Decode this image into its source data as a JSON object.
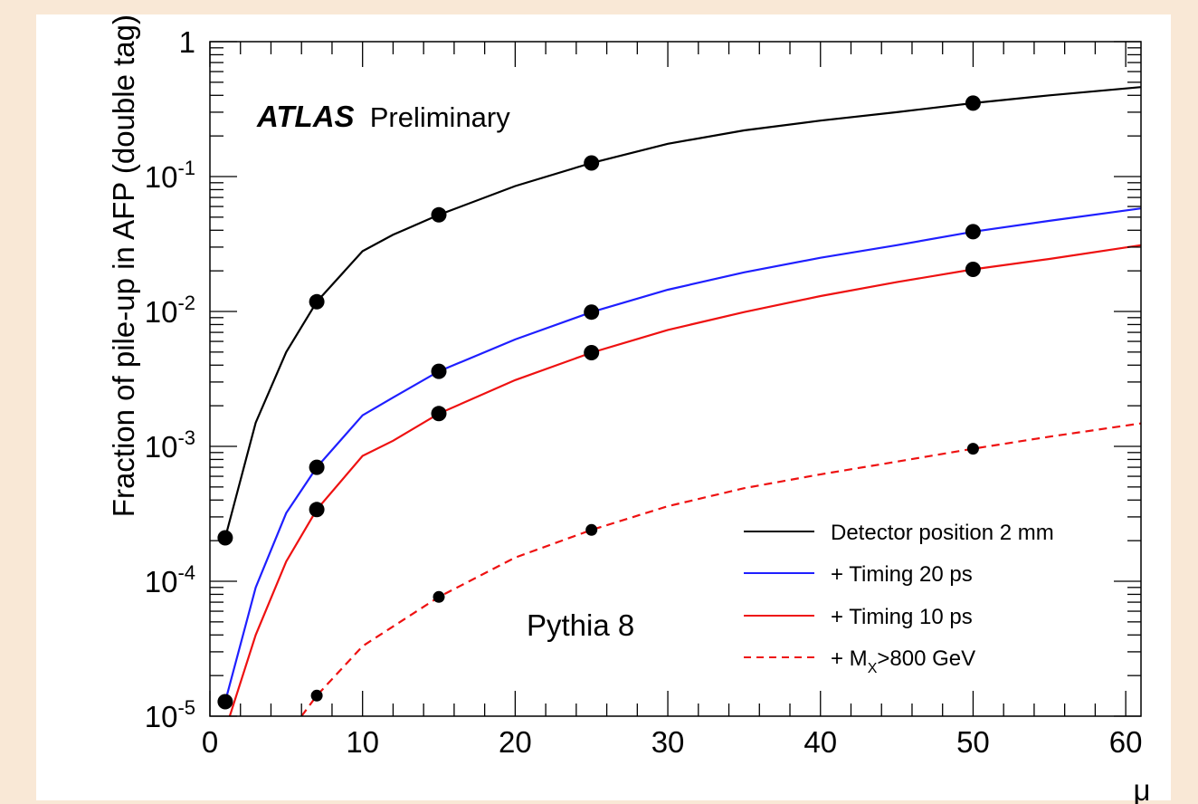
{
  "chart_data": {
    "type": "line",
    "ylabel": "Fraction of pile-up in AFP (double tag)",
    "xlabel": "μ",
    "xlim": [
      0,
      61
    ],
    "ylim": [
      1e-05,
      1
    ],
    "yscale": "log",
    "x_ticks": [
      0,
      10,
      20,
      30,
      40,
      50,
      60
    ],
    "y_ticks": [
      {
        "value": 1,
        "base": "1",
        "exp": ""
      },
      {
        "value": 0.1,
        "base": "10",
        "exp": "-1"
      },
      {
        "value": 0.01,
        "base": "10",
        "exp": "-2"
      },
      {
        "value": 0.001,
        "base": "10",
        "exp": "-3"
      },
      {
        "value": 0.0001,
        "base": "10",
        "exp": "-4"
      },
      {
        "value": 1e-05,
        "base": "10",
        "exp": "-5"
      }
    ],
    "annotations": {
      "experiment": "ATLAS",
      "status": "Preliminary",
      "generator": "Pythia 8"
    },
    "legend_position": "bottom-right",
    "series": [
      {
        "name": "Detector position 2 mm",
        "color": "#000000",
        "dashed": false,
        "points": [
          [
            1,
            0.00021
          ],
          [
            7,
            0.0118
          ],
          [
            15,
            0.052
          ],
          [
            25,
            0.126
          ],
          [
            50,
            0.35
          ]
        ],
        "curve": [
          [
            1,
            0.00021
          ],
          [
            3,
            0.0015
          ],
          [
            5,
            0.005
          ],
          [
            7,
            0.0118
          ],
          [
            10,
            0.028
          ],
          [
            12,
            0.037
          ],
          [
            15,
            0.052
          ],
          [
            20,
            0.085
          ],
          [
            25,
            0.126
          ],
          [
            30,
            0.175
          ],
          [
            35,
            0.22
          ],
          [
            40,
            0.26
          ],
          [
            45,
            0.3
          ],
          [
            50,
            0.35
          ],
          [
            55,
            0.4
          ],
          [
            61,
            0.46
          ]
        ]
      },
      {
        "name": "+ Timing 20 ps",
        "color": "#1f1fff",
        "dashed": false,
        "points": [
          [
            1,
            1.28e-05
          ],
          [
            7,
            0.0007
          ],
          [
            15,
            0.0036
          ],
          [
            25,
            0.0099
          ],
          [
            50,
            0.039
          ]
        ],
        "curve": [
          [
            1,
            1.28e-05
          ],
          [
            3,
            9e-05
          ],
          [
            5,
            0.00032
          ],
          [
            7,
            0.0007
          ],
          [
            10,
            0.0017
          ],
          [
            12,
            0.0023
          ],
          [
            15,
            0.0036
          ],
          [
            20,
            0.0062
          ],
          [
            25,
            0.0099
          ],
          [
            30,
            0.0145
          ],
          [
            35,
            0.0195
          ],
          [
            40,
            0.025
          ],
          [
            45,
            0.031
          ],
          [
            50,
            0.039
          ],
          [
            55,
            0.047
          ],
          [
            61,
            0.058
          ]
        ]
      },
      {
        "name": "+ Timing 10 ps",
        "color": "#ee1111",
        "dashed": false,
        "points": [
          [
            7,
            0.00034
          ],
          [
            15,
            0.00175
          ],
          [
            25,
            0.00495
          ],
          [
            50,
            0.0205
          ]
        ],
        "curve": [
          [
            1.3,
            1e-05
          ],
          [
            3,
            4e-05
          ],
          [
            5,
            0.00014
          ],
          [
            7,
            0.00034
          ],
          [
            10,
            0.00085
          ],
          [
            12,
            0.0011
          ],
          [
            15,
            0.00175
          ],
          [
            20,
            0.0031
          ],
          [
            25,
            0.00495
          ],
          [
            30,
            0.0073
          ],
          [
            35,
            0.0099
          ],
          [
            40,
            0.013
          ],
          [
            45,
            0.0165
          ],
          [
            50,
            0.0205
          ],
          [
            55,
            0.0245
          ],
          [
            61,
            0.031
          ]
        ]
      },
      {
        "name": "+ M_X>800 GeV",
        "label_main": "+ M",
        "label_sub": "X",
        "label_rest": ">800 GeV",
        "color": "#ee1111",
        "dashed": true,
        "points": [
          [
            7,
            1.42e-05
          ],
          [
            15,
            7.65e-05
          ],
          [
            25,
            0.00024
          ],
          [
            50,
            0.00096
          ]
        ],
        "curve": [
          [
            6,
            1e-05
          ],
          [
            7,
            1.42e-05
          ],
          [
            10,
            3.3e-05
          ],
          [
            15,
            7.65e-05
          ],
          [
            20,
            0.00015
          ],
          [
            25,
            0.00024
          ],
          [
            30,
            0.00036
          ],
          [
            35,
            0.00049
          ],
          [
            40,
            0.00062
          ],
          [
            45,
            0.00077
          ],
          [
            50,
            0.00096
          ],
          [
            55,
            0.00118
          ],
          [
            61,
            0.00148
          ]
        ]
      }
    ]
  }
}
